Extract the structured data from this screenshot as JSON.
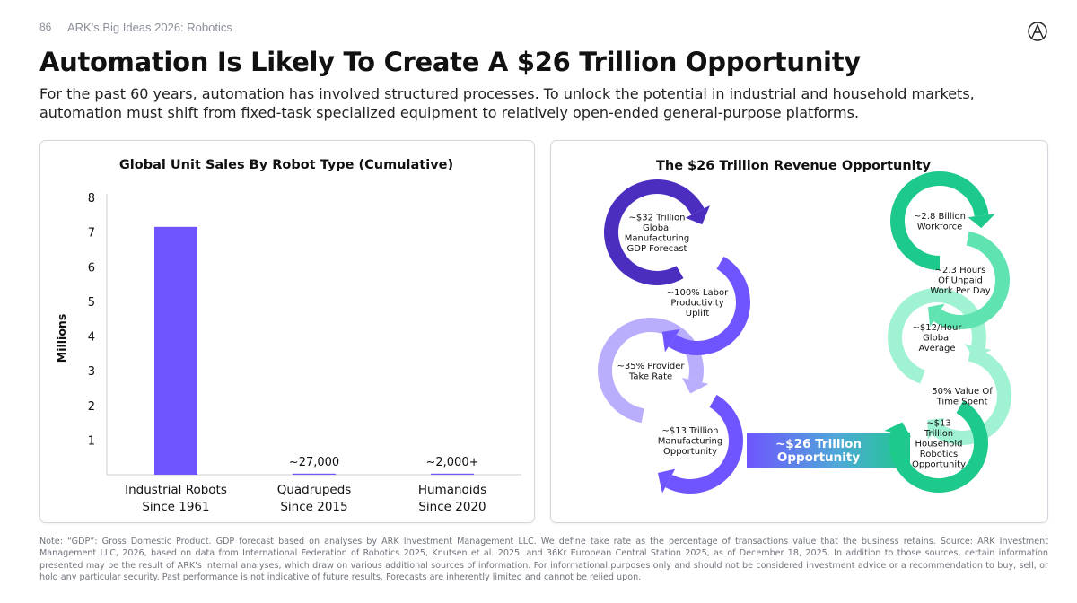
{
  "header": {
    "page_number": "86",
    "label": "ARK's Big Ideas 2026: Robotics",
    "logo_icon": "ark-logo-icon"
  },
  "title": "Automation Is Likely To Create A $26 Trillion Opportunity",
  "subtitle": "For the past 60 years, automation has involved structured processes. To unlock the potential in industrial and household markets, automation must shift from fixed-task specialized equipment to relatively open-ended general-purpose platforms.",
  "chart_data": [
    {
      "type": "bar",
      "title": "Global Unit Sales By Robot Type (Cumulative)",
      "xlabel": "",
      "ylabel": "Millions",
      "ylim": [
        0,
        8
      ],
      "yticks": [
        1,
        2,
        3,
        4,
        5,
        6,
        7,
        8
      ],
      "grid": false,
      "categories": [
        [
          "Industrial Robots",
          "Since 1961"
        ],
        [
          "Quadrupeds",
          "Since 2015"
        ],
        [
          "Humanoids",
          "Since 2020"
        ]
      ],
      "values": [
        7.15,
        0.027,
        0.002
      ],
      "data_labels": [
        "",
        "~27,000",
        "~2,000+"
      ],
      "color": "#6f55ff"
    },
    {
      "type": "diagram",
      "title": "The $26 Trillion Revenue Opportunity",
      "manufacturing_chain": [
        "~$32 Trillion Global Manufacturing GDP Forecast",
        "~100% Labor Productivity Uplift",
        "~35% Provider Take Rate",
        "~$13 Trillion Manufacturing Opportunity"
      ],
      "household_chain": [
        "~2.8 Billion Workforce",
        "~2.3 Hours Of Unpaid Work Per Day",
        "~$12/Hour Global Average",
        "50% Value Of Time Spent",
        "~$13 Trillion Household Robotics Opportunity"
      ],
      "total": "~$26 Trillion Opportunity",
      "colors": {
        "purple_dark": "#4b2ec0",
        "purple_mid": "#6f55ff",
        "purple_light": "#b9aefc",
        "green_dark": "#1ec98c",
        "green_mid": "#5fe3b0",
        "green_light": "#9ff2d2"
      }
    }
  ],
  "note": "Note: “GDP”: Gross Domestic Product. GDP forecast based on analyses by ARK Investment Management LLC. We define take rate as the percentage of transactions value that the business retains. Source: ARK Investment Management LLC, 2026, based on data from International Federation of Robotics 2025, Knutsen et al. 2025, and 36Kr European Central Station 2025, as of December 18, 2025. In addition to those sources, certain information presented may be the result of ARK's internal analyses, which draw on various additional sources of information. For informational purposes only and should not be considered investment advice or a recommendation to buy, sell, or hold any particular security. Past performance is not indicative of future results. Forecasts are inherently limited and cannot be relied upon."
}
